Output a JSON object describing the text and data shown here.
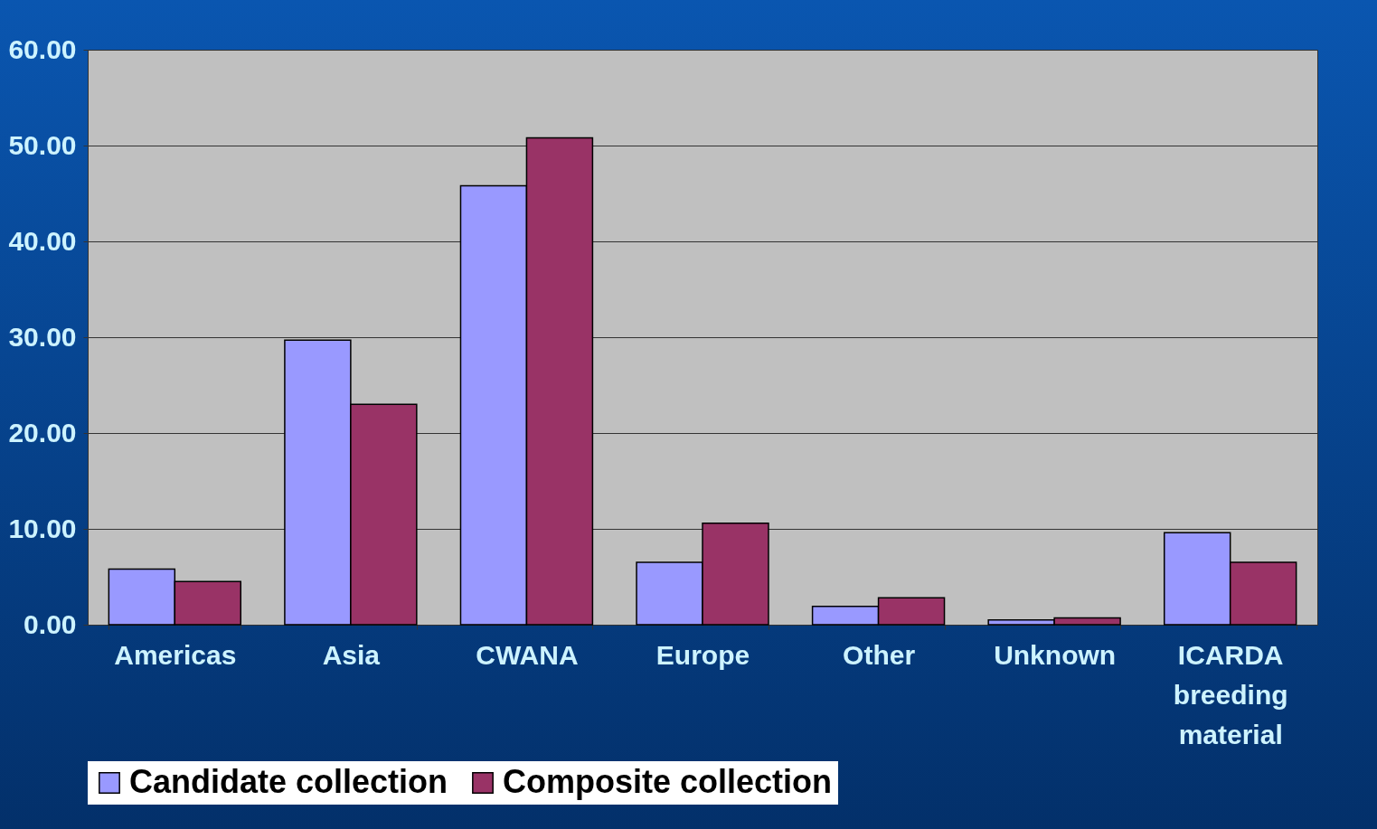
{
  "chart_data": {
    "type": "bar",
    "categories": [
      "Americas",
      "Asia",
      "CWANA",
      "Europe",
      "Other",
      "Unknown",
      "ICARDA breeding material"
    ],
    "series": [
      {
        "name": "Candidate collection",
        "color": "#9999ff",
        "values": [
          5.8,
          29.7,
          45.8,
          6.5,
          1.9,
          0.5,
          9.6
        ]
      },
      {
        "name": "Composite collection",
        "color": "#993366",
        "values": [
          4.5,
          23.0,
          50.8,
          10.6,
          2.8,
          0.7,
          6.5
        ]
      }
    ],
    "ylim": [
      0,
      60
    ],
    "yticks": [
      {
        "value": 0,
        "label": "0.00"
      },
      {
        "value": 10,
        "label": "10.00"
      },
      {
        "value": 20,
        "label": "20.00"
      },
      {
        "value": 30,
        "label": "30.00"
      },
      {
        "value": 40,
        "label": "40.00"
      },
      {
        "value": 50,
        "label": "50.00"
      },
      {
        "value": 60,
        "label": "60.00"
      }
    ],
    "grid": "y",
    "legend": "bottom"
  }
}
